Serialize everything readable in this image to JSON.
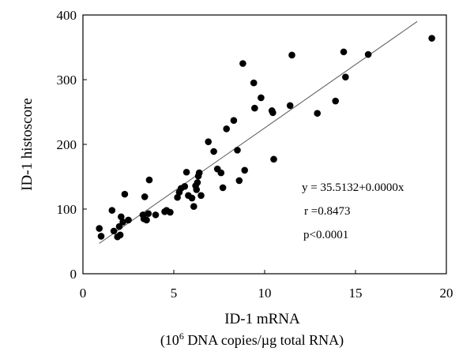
{
  "chart_data": {
    "type": "scatter",
    "title": "",
    "xlabel": "ID-1 mRNA",
    "xlabel_sub_pre": "(10",
    "xlabel_sub_sup": "6",
    "xlabel_sub_post": " DNA copies/µg total RNA)",
    "ylabel": "ID-1 histoscore",
    "xlim": [
      0,
      20
    ],
    "ylim": [
      0,
      400
    ],
    "xticks": [
      "0",
      "5",
      "10",
      "15",
      "20"
    ],
    "yticks": [
      "0",
      "100",
      "200",
      "300",
      "400"
    ],
    "grid": false,
    "colors": {
      "points": "#000000",
      "fit_line": "#555555",
      "frame": "#000000"
    },
    "fit_line": {
      "x": [
        0.9,
        18.4
      ],
      "y": [
        47,
        390
      ]
    },
    "annotations": [
      "y = 35.5132+0.0000x",
      "r =0.8473",
      "p<0.0001"
    ],
    "points": [
      {
        "x": 0.9,
        "y": 70
      },
      {
        "x": 1.0,
        "y": 58
      },
      {
        "x": 1.6,
        "y": 98
      },
      {
        "x": 1.7,
        "y": 66
      },
      {
        "x": 1.9,
        "y": 57
      },
      {
        "x": 2.0,
        "y": 73
      },
      {
        "x": 2.05,
        "y": 60
      },
      {
        "x": 2.1,
        "y": 88
      },
      {
        "x": 2.2,
        "y": 80
      },
      {
        "x": 2.3,
        "y": 123
      },
      {
        "x": 2.5,
        "y": 83
      },
      {
        "x": 3.3,
        "y": 91
      },
      {
        "x": 3.35,
        "y": 85
      },
      {
        "x": 3.4,
        "y": 119
      },
      {
        "x": 3.5,
        "y": 83
      },
      {
        "x": 3.6,
        "y": 93
      },
      {
        "x": 3.65,
        "y": 145
      },
      {
        "x": 4.0,
        "y": 91
      },
      {
        "x": 4.5,
        "y": 96
      },
      {
        "x": 4.6,
        "y": 98
      },
      {
        "x": 4.8,
        "y": 95
      },
      {
        "x": 5.2,
        "y": 118
      },
      {
        "x": 5.3,
        "y": 126
      },
      {
        "x": 5.4,
        "y": 132
      },
      {
        "x": 5.6,
        "y": 135
      },
      {
        "x": 5.7,
        "y": 157
      },
      {
        "x": 5.8,
        "y": 121
      },
      {
        "x": 6.0,
        "y": 117
      },
      {
        "x": 6.1,
        "y": 104
      },
      {
        "x": 6.2,
        "y": 136
      },
      {
        "x": 6.25,
        "y": 130
      },
      {
        "x": 6.3,
        "y": 141
      },
      {
        "x": 6.35,
        "y": 151
      },
      {
        "x": 6.4,
        "y": 156
      },
      {
        "x": 6.5,
        "y": 121
      },
      {
        "x": 6.9,
        "y": 204
      },
      {
        "x": 7.2,
        "y": 189
      },
      {
        "x": 7.4,
        "y": 162
      },
      {
        "x": 7.6,
        "y": 156
      },
      {
        "x": 7.7,
        "y": 133
      },
      {
        "x": 7.9,
        "y": 224
      },
      {
        "x": 8.3,
        "y": 237
      },
      {
        "x": 8.5,
        "y": 191
      },
      {
        "x": 8.6,
        "y": 144
      },
      {
        "x": 8.8,
        "y": 325
      },
      {
        "x": 8.9,
        "y": 160
      },
      {
        "x": 9.4,
        "y": 295
      },
      {
        "x": 9.45,
        "y": 256
      },
      {
        "x": 9.8,
        "y": 272
      },
      {
        "x": 10.4,
        "y": 252
      },
      {
        "x": 10.45,
        "y": 249
      },
      {
        "x": 10.5,
        "y": 177
      },
      {
        "x": 11.4,
        "y": 260
      },
      {
        "x": 11.5,
        "y": 338
      },
      {
        "x": 12.9,
        "y": 248
      },
      {
        "x": 13.9,
        "y": 267
      },
      {
        "x": 14.35,
        "y": 343
      },
      {
        "x": 14.45,
        "y": 304
      },
      {
        "x": 15.7,
        "y": 339
      },
      {
        "x": 19.2,
        "y": 364
      }
    ]
  }
}
